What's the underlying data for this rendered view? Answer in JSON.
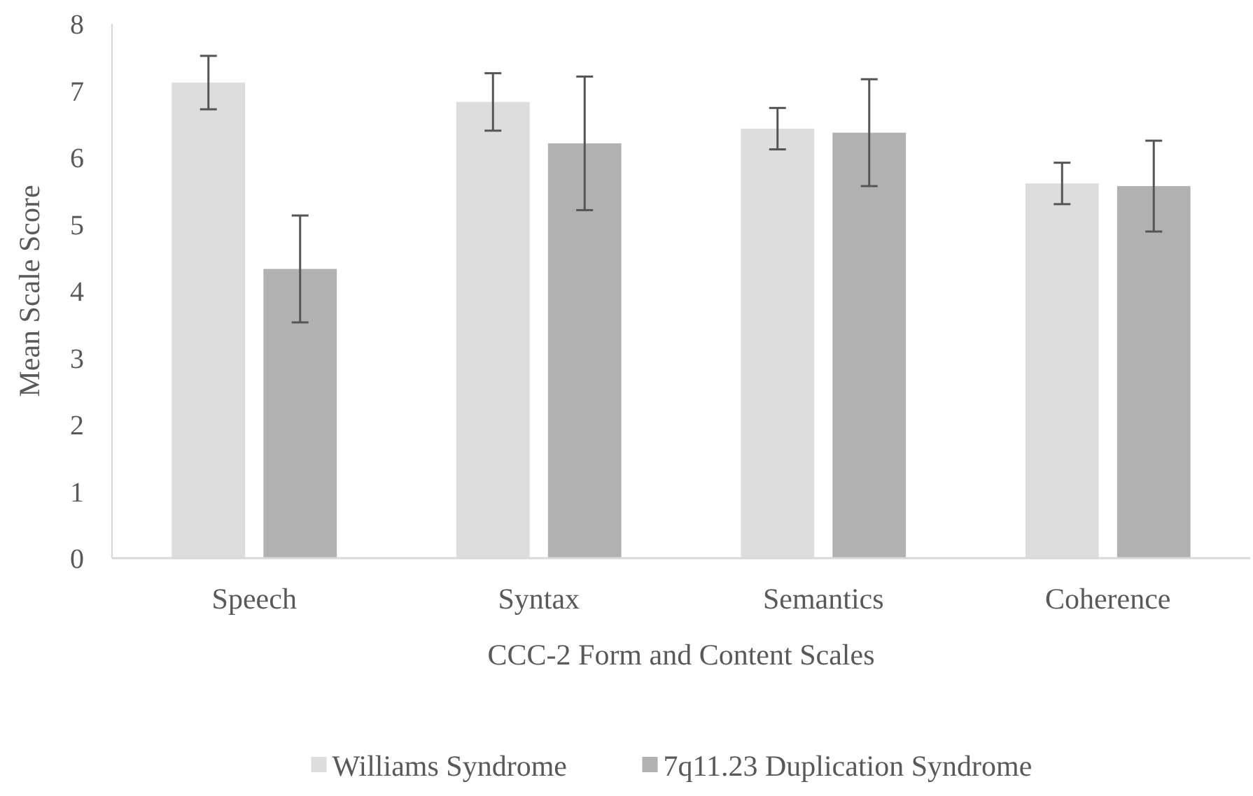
{
  "chart_data": {
    "type": "bar",
    "xlabel": "CCC-2 Form and Content Scales",
    "ylabel": "Mean Scale Score",
    "categories": [
      "Speech",
      "Syntax",
      "Semantics",
      "Coherence"
    ],
    "series": [
      {
        "name": "Williams Syndrome",
        "color": "#dddddd",
        "values": [
          7.12,
          6.83,
          6.43,
          5.61
        ],
        "errors": [
          0.4,
          0.43,
          0.31,
          0.31
        ]
      },
      {
        "name": "7q11.23 Duplication Syndrome",
        "color": "#b1b1b1",
        "values": [
          4.33,
          6.21,
          6.37,
          5.57
        ],
        "errors": [
          0.8,
          1.0,
          0.8,
          0.68
        ]
      }
    ],
    "ylim": [
      0,
      8
    ],
    "yticks": [
      0,
      1,
      2,
      3,
      4,
      5,
      6,
      7,
      8
    ],
    "grid": false,
    "legend": "bottom"
  }
}
